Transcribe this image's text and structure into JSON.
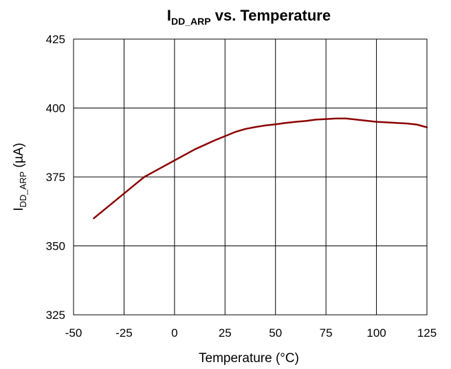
{
  "chart_data": {
    "type": "line",
    "title": {
      "main": "I",
      "subscript": "DD_ARP",
      "rest": " vs. Temperature"
    },
    "xlabel": "Temperature (°C)",
    "ylabel": {
      "main": "I",
      "subscript": "DD_ARP",
      "rest": " (µA)"
    },
    "xlim": [
      -50,
      125
    ],
    "ylim": [
      325,
      425
    ],
    "x_ticks": [
      -50,
      -25,
      0,
      25,
      50,
      75,
      100,
      125
    ],
    "y_ticks": [
      325,
      350,
      375,
      400,
      425
    ],
    "x_tick_labels": [
      "-50",
      "-25",
      "0",
      "25",
      "50",
      "75",
      "100",
      "125"
    ],
    "y_tick_labels": [
      "325",
      "350",
      "375",
      "400",
      "425"
    ],
    "grid": true,
    "legend": "none",
    "series": [
      {
        "color": "#8b0000",
        "x": [
          -40,
          -30,
          -20,
          -15,
          -10,
          0,
          10,
          20,
          30,
          35,
          40,
          45,
          50,
          55,
          60,
          65,
          70,
          75,
          80,
          85,
          90,
          95,
          100,
          105,
          110,
          115,
          120,
          125
        ],
        "y": [
          360,
          366,
          372,
          375,
          377,
          381,
          385,
          388.3,
          391.3,
          392.4,
          393.1,
          393.7,
          394.1,
          394.6,
          395,
          395.3,
          395.8,
          396,
          396.2,
          396.2,
          395.8,
          395.4,
          395,
          394.8,
          394.6,
          394.4,
          394,
          393
        ]
      }
    ]
  }
}
